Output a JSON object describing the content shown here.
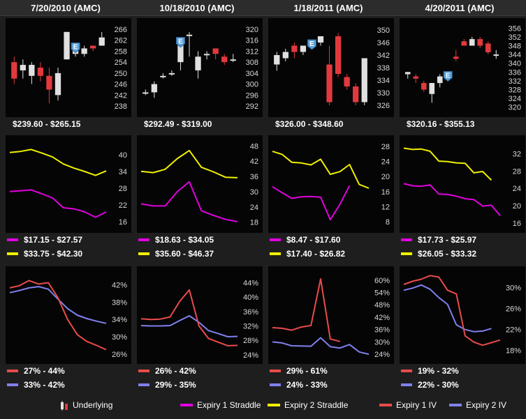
{
  "headers": [
    "7/20/2010  (AMC)",
    "10/18/2010  (AMC)",
    "1/18/2011  (AMC)",
    "4/20/2011  (AMC)"
  ],
  "earnings_badge": "E",
  "colors": {
    "up": "#e0e0e0",
    "down": "#e2393e",
    "straddle1": "#e000e0",
    "straddle2": "#f0f000",
    "iv1": "#ea4b4b",
    "iv2": "#8080f0",
    "panel_bg": "#050505",
    "page_bg": "#1e1e1e"
  },
  "price_panels": [
    {
      "ticks": [
        "266",
        "262",
        "258",
        "254",
        "250",
        "246",
        "242",
        "238"
      ],
      "range": "$239.60  -  $265.15",
      "earnings_index": 7,
      "candles": [
        [
          254,
          248,
          256,
          246
        ],
        [
          251,
          253,
          255,
          248
        ],
        [
          249,
          253,
          254,
          246
        ],
        [
          252,
          249,
          254,
          247
        ],
        [
          249,
          244,
          252,
          239
        ],
        [
          242,
          250,
          252,
          240
        ],
        [
          255,
          265,
          265,
          255
        ],
        [
          257,
          260,
          261,
          256
        ],
        [
          257,
          259,
          260,
          256
        ],
        [
          260,
          259,
          260,
          258
        ],
        [
          260,
          263,
          265,
          260
        ]
      ]
    },
    {
      "ticks": [
        "320",
        "316",
        "312",
        "308",
        "304",
        "300",
        "296",
        "292"
      ],
      "range": "$292.49  -  $319.00",
      "earnings_index": 4,
      "candles": [
        [
          297,
          297,
          298,
          296
        ],
        [
          297,
          300,
          301,
          295
        ],
        [
          303,
          303,
          304,
          302
        ],
        [
          304,
          304,
          305,
          303
        ],
        [
          308,
          316,
          316,
          305
        ],
        [
          318,
          318,
          319,
          310
        ],
        [
          305,
          310,
          312,
          302
        ],
        [
          311,
          311,
          312,
          309
        ],
        [
          313,
          311,
          313,
          309
        ],
        [
          310,
          308,
          311,
          307
        ],
        [
          309,
          309,
          311,
          308
        ]
      ]
    },
    {
      "ticks": [
        "350",
        "346",
        "342",
        "338",
        "334",
        "330",
        "326"
      ],
      "range": "$326.00  -  $348.60",
      "earnings_index": 4,
      "candles": [
        [
          339,
          342,
          343,
          337
        ],
        [
          341,
          343,
          344,
          340
        ],
        [
          345,
          343,
          346,
          341
        ],
        [
          343,
          345,
          345,
          342
        ],
        [
          345,
          346,
          346,
          344
        ],
        [
          346,
          348,
          348,
          345
        ],
        [
          339,
          327,
          345,
          326
        ],
        [
          348,
          336,
          349,
          335
        ],
        [
          335,
          332,
          336,
          331
        ],
        [
          332,
          327,
          333,
          326
        ],
        [
          327,
          341,
          341,
          326
        ]
      ]
    },
    {
      "ticks": [
        "356",
        "352",
        "348",
        "344",
        "340",
        "336",
        "332",
        "328",
        "324",
        "320"
      ],
      "range": "$320.16  -  $355.13",
      "earnings_index": 5,
      "candles": [
        [
          335,
          336,
          336,
          333
        ],
        [
          334,
          333,
          335,
          331
        ],
        [
          331,
          328,
          332,
          327
        ],
        [
          326,
          331,
          331,
          322
        ],
        [
          331,
          334,
          335,
          329
        ],
        [
          335,
          335,
          336,
          334
        ],
        [
          343,
          342,
          346,
          341
        ],
        [
          350,
          348,
          351,
          348
        ],
        [
          348,
          351,
          352,
          348
        ],
        [
          351,
          348,
          352,
          347
        ],
        [
          349,
          345,
          350,
          344
        ],
        [
          344,
          344,
          346,
          342
        ]
      ]
    }
  ],
  "straddle_panels": [
    {
      "ticks": [
        "40",
        "34",
        "28",
        "22",
        "16"
      ],
      "min": 14,
      "max": 45,
      "s1": [
        26.8,
        27.1,
        27.4,
        26.0,
        24.5,
        21.0,
        20.6,
        19.5,
        17.6,
        19.5
      ],
      "s2": [
        40.8,
        41.2,
        41.9,
        40.6,
        39.2,
        36.7,
        35.2,
        34.0,
        32.6,
        34.2
      ],
      "range1": "$17.15  -  $27.57",
      "range2": "$33.75  -  $42.30"
    },
    {
      "ticks": [
        "48",
        "42",
        "36",
        "30",
        "24",
        "18"
      ],
      "min": 16,
      "max": 50,
      "s1": [
        25.2,
        24.4,
        24.4,
        30.0,
        33.9,
        22.5,
        20.7,
        19.1,
        18.2
      ],
      "s2": [
        38.0,
        37.5,
        38.8,
        43.0,
        46.2,
        39.6,
        37.8,
        35.7,
        35.5
      ],
      "range1": "$18.63  -  $34.05",
      "range2": "$35.60  -  $46.37"
    },
    {
      "ticks": [
        "28",
        "24",
        "20",
        "16",
        "12",
        "8"
      ],
      "min": 6.5,
      "max": 29.5,
      "s1": [
        17.3,
        15.7,
        14.2,
        14.6,
        14.7,
        14.5,
        8.5,
        12.6,
        17.6
      ],
      "s2": [
        26.7,
        25.9,
        23.8,
        23.6,
        23.1,
        24.6,
        20.6,
        21.3,
        23.2,
        17.9,
        16.9
      ],
      "range1": "$8.47  -  $17.60",
      "range2": "$17.40  -  $26.82"
    },
    {
      "ticks": [
        "32",
        "28",
        "24",
        "20",
        "16"
      ],
      "min": 15,
      "max": 35,
      "s1": [
        25.1,
        24.6,
        24.5,
        24.8,
        22.7,
        22.6,
        22.2,
        21.6,
        21.4,
        19.9,
        20.1,
        17.7
      ],
      "s2": [
        33.3,
        33.0,
        33.1,
        32.6,
        30.3,
        30.2,
        29.9,
        29.8,
        27.6,
        27.9,
        25.9
      ],
      "range1": "$17.73  -  $25.97",
      "range2": "$26.05  -  $33.32"
    }
  ],
  "iv_panels": [
    {
      "ticks": [
        "42%",
        "38%",
        "34%",
        "30%",
        "26%"
      ],
      "min": 25,
      "max": 45,
      "iv1": [
        41.3,
        41.8,
        43.0,
        42.2,
        42.5,
        39.0,
        34.0,
        30.5,
        28.9,
        28.0,
        27.0
      ],
      "iv2": [
        40.2,
        40.7,
        41.3,
        41.6,
        41.0,
        38.7,
        36.5,
        35.0,
        34.2,
        33.6,
        33.1
      ],
      "range1": "27%  -  44%",
      "range2": "33%  -  42%"
    },
    {
      "ticks": [
        "44%",
        "40%",
        "36%",
        "32%",
        "28%",
        "24%"
      ],
      "min": 23,
      "max": 47,
      "iv1": [
        34.0,
        33.8,
        33.9,
        34.5,
        38.8,
        42.0,
        32.0,
        28.5,
        27.5,
        26.5,
        26.6
      ],
      "iv2": [
        32.1,
        32.0,
        32.0,
        32.1,
        33.5,
        34.8,
        33.0,
        30.7,
        29.9,
        29.0,
        29.1
      ],
      "range1": "26%  -  42%",
      "range2": "29%  -  35%"
    },
    {
      "ticks": [
        "60%",
        "54%",
        "48%",
        "42%",
        "36%",
        "30%",
        "24%"
      ],
      "min": 22,
      "max": 64,
      "iv1": [
        36.9,
        36.6,
        35.7,
        37.2,
        38.0,
        60.6,
        31.4,
        30.2
      ],
      "iv2": [
        30.0,
        29.5,
        28.1,
        28.0,
        27.9,
        32.0,
        27.7,
        27.0,
        28.7,
        25.1,
        24.0
      ],
      "range1": "29%  -  61%",
      "range2": "24%  -  33%"
    },
    {
      "ticks": [
        "30%",
        "26%",
        "22%",
        "18%"
      ],
      "min": 16.5,
      "max": 33,
      "iv1": [
        30.6,
        31.2,
        31.6,
        32.3,
        32.0,
        29.5,
        28.8,
        20.8,
        19.6,
        19.0,
        19.5,
        20.0
      ],
      "iv2": [
        29.5,
        29.9,
        30.5,
        29.7,
        28.1,
        26.8,
        22.9,
        22.0,
        21.6,
        21.7,
        22.2
      ],
      "range1": "19%  -  32%",
      "range2": "22%  -  30%"
    }
  ],
  "legend": {
    "underlying": "Underlying",
    "straddle1": "Expiry 1 Straddle",
    "straddle2": "Expiry 2 Straddle",
    "iv1": "Expiry 1 IV",
    "iv2": "Expiry 2 IV"
  },
  "chart_data": [
    {
      "type": "candlestick",
      "title": "7/20/2010  (AMC)",
      "ylim": [
        236,
        268
      ],
      "ohlc_order": "open,close,high,low"
    },
    {
      "type": "candlestick",
      "title": "10/18/2010  (AMC)",
      "ylim": [
        290,
        322
      ]
    },
    {
      "type": "candlestick",
      "title": "1/18/2011  (AMC)",
      "ylim": [
        324,
        352
      ]
    },
    {
      "type": "candlestick",
      "title": "4/20/2011  (AMC)",
      "ylim": [
        318,
        358
      ]
    },
    {
      "type": "line",
      "series": [
        {
          "name": "Expiry 1 Straddle"
        },
        {
          "name": "Expiry 2 Straddle"
        }
      ]
    },
    {
      "type": "line",
      "series": [
        {
          "name": "Expiry 1 IV"
        },
        {
          "name": "Expiry 2 IV"
        }
      ]
    }
  ]
}
